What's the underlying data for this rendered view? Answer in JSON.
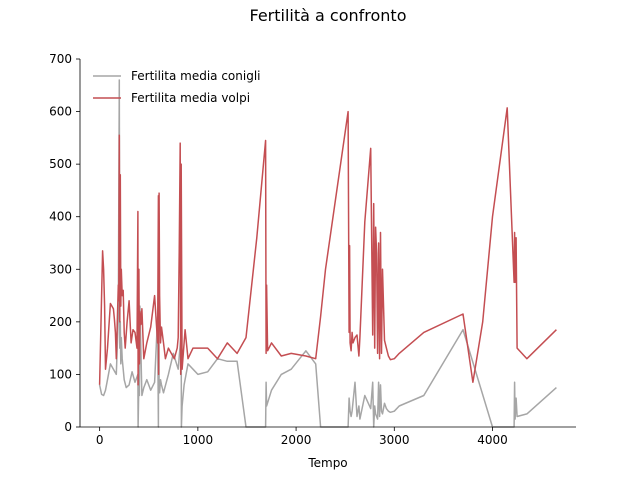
{
  "chart_data": {
    "type": "line",
    "title": "Fertilità a confronto",
    "xlabel": "Tempo",
    "ylabel": "",
    "xlim": [
      -200,
      4850
    ],
    "ylim": [
      0,
      700
    ],
    "xticks": [
      0,
      1000,
      2000,
      3000,
      4000
    ],
    "yticks": [
      0,
      100,
      200,
      300,
      400,
      500,
      600,
      700
    ],
    "grid": false,
    "legend": "top-left",
    "series": [
      {
        "name": "Fertilita media conigli",
        "color": "#a6a6a6",
        "x": [
          0,
          20,
          40,
          60,
          80,
          110,
          140,
          170,
          190,
          200,
          205,
          210,
          215,
          220,
          230,
          240,
          250,
          270,
          300,
          330,
          360,
          390,
          392,
          400,
          405,
          410,
          430,
          450,
          480,
          520,
          560,
          590,
          598,
          600,
          605,
          610,
          620,
          630,
          650,
          700,
          750,
          800,
          830,
          832,
          840,
          860,
          900,
          950,
          1000,
          1100,
          1200,
          1300,
          1400,
          1490,
          1500,
          1690,
          1695,
          1700,
          1750,
          1850,
          1950,
          2100,
          2200,
          2250,
          2530,
          2540,
          2550,
          2560,
          2570,
          2600,
          2620,
          2640,
          2650,
          2700,
          2760,
          2780,
          2790,
          2800,
          2810,
          2830,
          2840,
          2850,
          2860,
          2870,
          2880,
          2900,
          2920,
          2940,
          2960,
          3000,
          3050,
          3300,
          3700,
          4000,
          4220,
          4225,
          4230,
          4240,
          4250,
          4350,
          4650
        ],
        "y": [
          80,
          62,
          60,
          70,
          90,
          120,
          110,
          100,
          210,
          660,
          150,
          200,
          120,
          170,
          130,
          110,
          90,
          75,
          80,
          105,
          85,
          100,
          0,
          90,
          60,
          230,
          60,
          75,
          90,
          70,
          85,
          210,
          0,
          350,
          80,
          65,
          90,
          80,
          65,
          100,
          140,
          110,
          180,
          0,
          40,
          80,
          120,
          110,
          100,
          105,
          130,
          125,
          125,
          0,
          0,
          0,
          85,
          40,
          70,
          100,
          110,
          145,
          120,
          0,
          0,
          55,
          30,
          20,
          30,
          85,
          20,
          40,
          15,
          60,
          35,
          85,
          0,
          40,
          25,
          15,
          85,
          20,
          80,
          30,
          25,
          45,
          35,
          30,
          28,
          30,
          40,
          60,
          185,
          0,
          0,
          85,
          15,
          55,
          20,
          25,
          75
        ]
      },
      {
        "name": "Fertilita media volpi",
        "color": "#c44e52",
        "x": [
          0,
          30,
          40,
          50,
          60,
          80,
          110,
          140,
          150,
          160,
          170,
          180,
          190,
          195,
          200,
          205,
          210,
          215,
          220,
          230,
          240,
          250,
          260,
          280,
          300,
          320,
          340,
          360,
          380,
          390,
          392,
          400,
          405,
          410,
          420,
          430,
          450,
          480,
          520,
          560,
          590,
          598,
          600,
          605,
          610,
          620,
          630,
          650,
          670,
          700,
          730,
          760,
          790,
          800,
          810,
          820,
          825,
          830,
          840,
          860,
          870,
          900,
          950,
          1000,
          1100,
          1200,
          1300,
          1400,
          1490,
          1600,
          1690,
          1695,
          1700,
          1710,
          1750,
          1850,
          1950,
          2100,
          2200,
          2250,
          2300,
          2530,
          2540,
          2545,
          2550,
          2560,
          2570,
          2580,
          2600,
          2620,
          2640,
          2650,
          2700,
          2760,
          2780,
          2790,
          2800,
          2810,
          2820,
          2830,
          2840,
          2850,
          2860,
          2870,
          2880,
          2900,
          2920,
          2940,
          2960,
          3000,
          3050,
          3300,
          3700,
          3800,
          3900,
          4000,
          4150,
          4220,
          4225,
          4230,
          4240,
          4250,
          4350,
          4650
        ],
        "y": [
          80,
          335,
          300,
          230,
          110,
          150,
          235,
          225,
          205,
          180,
          130,
          200,
          270,
          240,
          555,
          200,
          480,
          230,
          300,
          250,
          260,
          180,
          150,
          200,
          240,
          160,
          185,
          180,
          150,
          410,
          80,
          300,
          120,
          220,
          195,
          225,
          130,
          160,
          190,
          250,
          160,
          440,
          100,
          445,
          250,
          160,
          190,
          160,
          130,
          150,
          140,
          130,
          150,
          170,
          330,
          540,
          100,
          500,
          110,
          160,
          185,
          130,
          150,
          150,
          150,
          130,
          160,
          140,
          170,
          360,
          545,
          140,
          270,
          145,
          160,
          135,
          140,
          135,
          130,
          210,
          300,
          600,
          180,
          345,
          160,
          145,
          180,
          160,
          170,
          175,
          135,
          170,
          390,
          530,
          175,
          425,
          150,
          380,
          330,
          140,
          350,
          130,
          370,
          140,
          300,
          165,
          150,
          135,
          128,
          130,
          140,
          180,
          215,
          85,
          200,
          400,
          607,
          275,
          370,
          275,
          360,
          150,
          130,
          185
        ]
      }
    ]
  }
}
